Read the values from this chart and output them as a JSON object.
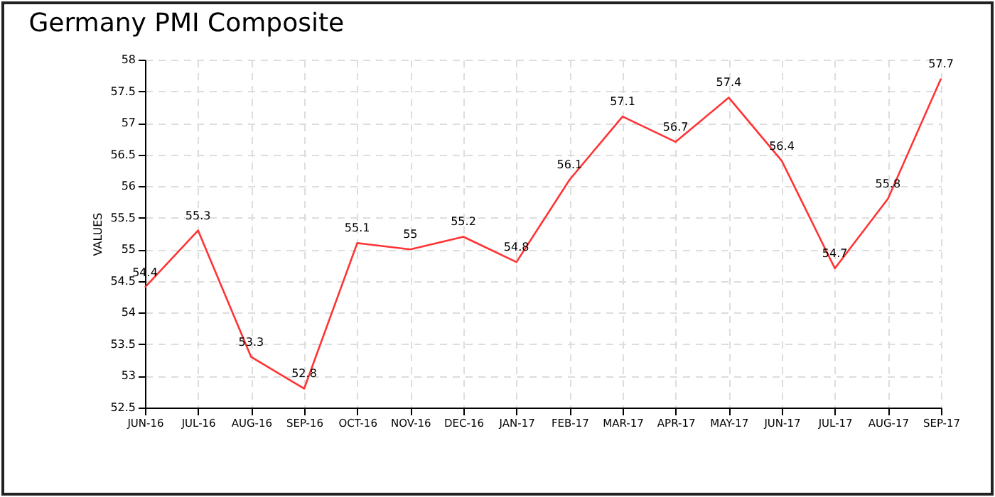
{
  "chart_data": {
    "type": "line",
    "title": "Germany PMI Composite",
    "ylabel": "VALUES",
    "categories": [
      "JUN-16",
      "JUL-16",
      "AUG-16",
      "SEP-16",
      "OCT-16",
      "NOV-16",
      "DEC-16",
      "JAN-17",
      "FEB-17",
      "MAR-17",
      "APR-17",
      "MAY-17",
      "JUN-17",
      "JUL-17",
      "AUG-17",
      "SEP-17"
    ],
    "series": [
      {
        "color": "#ff3333",
        "values": [
          54.4,
          55.3,
          53.3,
          52.8,
          55.1,
          55,
          55.2,
          54.8,
          56.1,
          57.1,
          56.7,
          57.4,
          56.4,
          54.7,
          55.8,
          57.7
        ]
      }
    ],
    "ylim": [
      52.5,
      58
    ],
    "yticks": [
      52.5,
      53,
      53.5,
      54,
      54.5,
      55,
      55.5,
      56,
      56.5,
      57,
      57.5,
      58
    ],
    "grid": true,
    "data_labels": true,
    "line_style": "solid",
    "marker": "none"
  }
}
